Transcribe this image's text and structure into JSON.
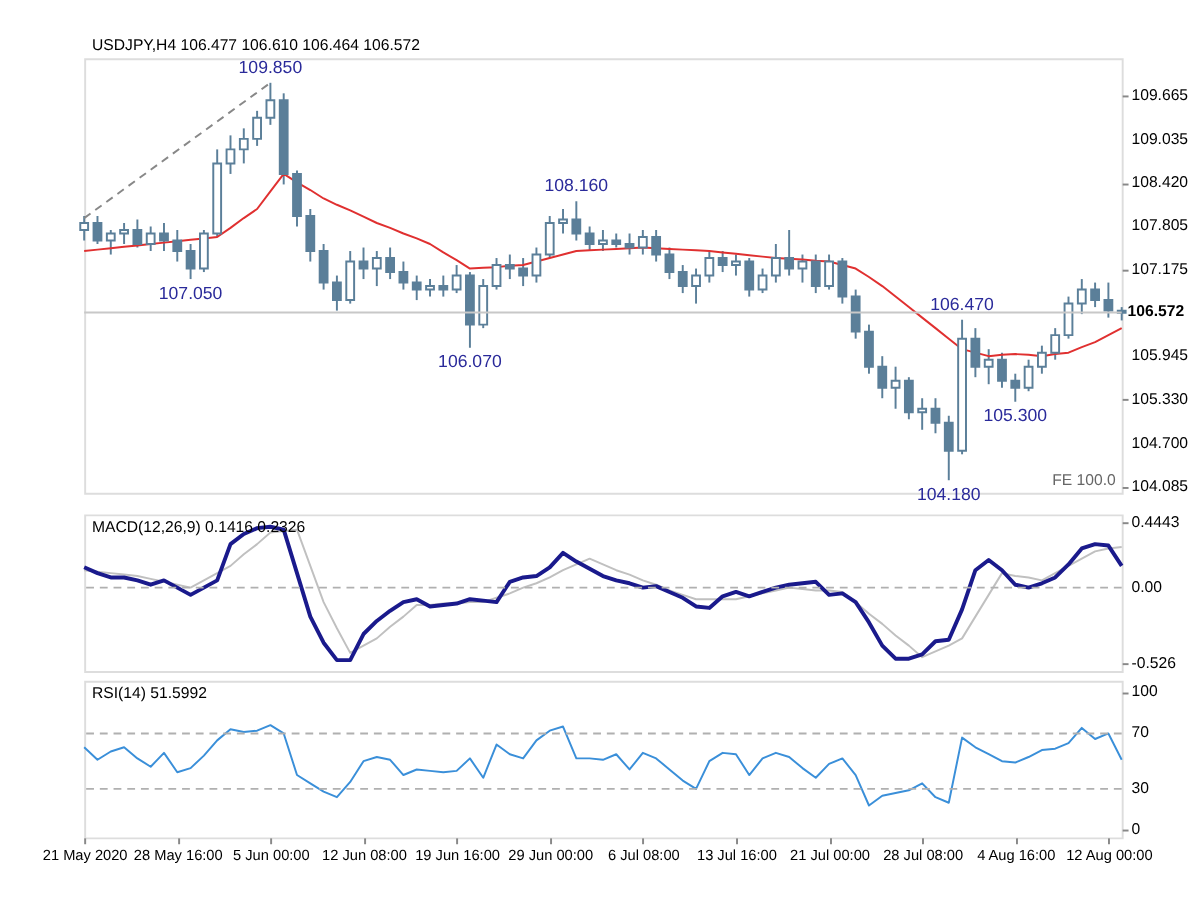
{
  "chart_data": [
    {
      "type": "candlestick",
      "title": "USDJPY,H4  106.477 106.610 106.464 106.572",
      "tick_labels": "y",
      "categories": [
        "21 May 2020",
        null,
        null,
        null,
        null,
        null,
        null,
        "28 May 16:00",
        null,
        null,
        null,
        null,
        null,
        null,
        "5 Jun 00:00",
        null,
        null,
        null,
        null,
        null,
        null,
        "12 Jun 08:00",
        null,
        null,
        null,
        null,
        null,
        null,
        "19 Jun 16:00",
        null,
        null,
        null,
        null,
        null,
        null,
        "29 Jun 00:00",
        null,
        null,
        null,
        null,
        null,
        null,
        "6 Jul 08:00",
        null,
        null,
        null,
        null,
        null,
        null,
        "13 Jul 16:00",
        null,
        null,
        null,
        null,
        null,
        null,
        "21 Jul 00:00",
        null,
        null,
        null,
        null,
        null,
        null,
        "28 Jul 08:00",
        null,
        null,
        null,
        null,
        null,
        null,
        "4 Aug 16:00",
        null,
        null,
        null,
        null,
        null,
        null,
        "12 Aug 00:00",
        null
      ],
      "ohlc": [
        [
          107.75,
          107.95,
          107.6,
          107.85
        ],
        [
          107.85,
          107.95,
          107.55,
          107.6
        ],
        [
          107.6,
          107.75,
          107.4,
          107.7
        ],
        [
          107.7,
          107.85,
          107.55,
          107.75
        ],
        [
          107.75,
          107.9,
          107.5,
          107.55
        ],
        [
          107.55,
          107.8,
          107.45,
          107.7
        ],
        [
          107.7,
          107.85,
          107.45,
          107.6
        ],
        [
          107.6,
          107.75,
          107.3,
          107.45
        ],
        [
          107.45,
          107.55,
          107.05,
          107.2
        ],
        [
          107.2,
          107.75,
          107.15,
          107.7
        ],
        [
          107.7,
          108.9,
          107.65,
          108.7
        ],
        [
          108.7,
          109.1,
          108.55,
          108.9
        ],
        [
          108.9,
          109.2,
          108.7,
          109.05
        ],
        [
          109.05,
          109.45,
          108.95,
          109.35
        ],
        [
          109.35,
          109.85,
          109.25,
          109.6
        ],
        [
          109.6,
          109.7,
          108.4,
          108.55
        ],
        [
          108.55,
          108.6,
          107.8,
          107.95
        ],
        [
          107.95,
          108.05,
          107.3,
          107.45
        ],
        [
          107.45,
          107.55,
          106.9,
          107.0
        ],
        [
          107.0,
          107.1,
          106.6,
          106.75
        ],
        [
          106.75,
          107.45,
          106.7,
          107.3
        ],
        [
          107.3,
          107.5,
          107.05,
          107.2
        ],
        [
          107.2,
          107.45,
          106.95,
          107.35
        ],
        [
          107.35,
          107.5,
          107.05,
          107.15
        ],
        [
          107.15,
          107.3,
          106.9,
          107.0
        ],
        [
          107.0,
          107.1,
          106.75,
          106.9
        ],
        [
          106.9,
          107.05,
          106.8,
          106.95
        ],
        [
          106.95,
          107.1,
          106.8,
          106.9
        ],
        [
          106.9,
          107.25,
          106.85,
          107.1
        ],
        [
          107.1,
          107.15,
          106.07,
          106.4
        ],
        [
          106.4,
          107.05,
          106.35,
          106.95
        ],
        [
          106.95,
          107.35,
          106.9,
          107.25
        ],
        [
          107.25,
          107.4,
          107.05,
          107.2
        ],
        [
          107.2,
          107.35,
          106.95,
          107.1
        ],
        [
          107.1,
          107.5,
          107.0,
          107.4
        ],
        [
          107.4,
          107.95,
          107.35,
          107.85
        ],
        [
          107.85,
          108.05,
          107.7,
          107.9
        ],
        [
          107.9,
          108.16,
          107.6,
          107.7
        ],
        [
          107.7,
          107.8,
          107.45,
          107.55
        ],
        [
          107.55,
          107.75,
          107.45,
          107.6
        ],
        [
          107.6,
          107.7,
          107.5,
          107.55
        ],
        [
          107.55,
          107.7,
          107.4,
          107.5
        ],
        [
          107.5,
          107.75,
          107.4,
          107.65
        ],
        [
          107.65,
          107.75,
          107.3,
          107.4
        ],
        [
          107.4,
          107.5,
          107.05,
          107.15
        ],
        [
          107.15,
          107.25,
          106.85,
          106.95
        ],
        [
          106.95,
          107.2,
          106.7,
          107.1
        ],
        [
          107.1,
          107.45,
          107.0,
          107.35
        ],
        [
          107.35,
          107.45,
          107.15,
          107.25
        ],
        [
          107.25,
          107.4,
          107.1,
          107.3
        ],
        [
          107.3,
          107.35,
          106.8,
          106.9
        ],
        [
          106.9,
          107.2,
          106.85,
          107.1
        ],
        [
          107.1,
          107.55,
          107.0,
          107.35
        ],
        [
          107.35,
          107.75,
          107.1,
          107.2
        ],
        [
          107.2,
          107.4,
          107.0,
          107.3
        ],
        [
          107.3,
          107.4,
          106.85,
          106.95
        ],
        [
          106.95,
          107.4,
          106.9,
          107.3
        ],
        [
          107.3,
          107.35,
          106.7,
          106.8
        ],
        [
          106.8,
          106.9,
          106.2,
          106.3
        ],
        [
          106.3,
          106.4,
          105.7,
          105.8
        ],
        [
          105.8,
          105.95,
          105.35,
          105.5
        ],
        [
          105.5,
          105.8,
          105.2,
          105.6
        ],
        [
          105.6,
          105.65,
          105.05,
          105.15
        ],
        [
          105.15,
          105.35,
          104.9,
          105.2
        ],
        [
          105.2,
          105.35,
          104.85,
          105.0
        ],
        [
          105.0,
          105.1,
          104.18,
          104.6
        ],
        [
          104.6,
          106.47,
          104.55,
          106.2
        ],
        [
          106.2,
          106.35,
          105.65,
          105.8
        ],
        [
          105.8,
          106.05,
          105.55,
          105.9
        ],
        [
          105.9,
          106.0,
          105.5,
          105.6
        ],
        [
          105.6,
          105.7,
          105.3,
          105.5
        ],
        [
          105.5,
          105.9,
          105.45,
          105.8
        ],
        [
          105.8,
          106.1,
          105.7,
          106.0
        ],
        [
          106.0,
          106.35,
          105.9,
          106.25
        ],
        [
          106.25,
          106.8,
          106.2,
          106.7
        ],
        [
          106.7,
          107.05,
          106.55,
          106.9
        ],
        [
          106.9,
          107.0,
          106.65,
          106.75
        ],
        [
          106.75,
          107.0,
          106.5,
          106.6
        ],
        [
          106.6,
          106.65,
          106.46,
          106.57
        ]
      ],
      "color": "#5b7f99",
      "series": [
        {
          "type": "line",
          "color": "#e03030",
          "values": [
            107.45,
            107.47,
            107.49,
            107.51,
            107.53,
            107.55,
            107.57,
            107.59,
            107.61,
            107.63,
            107.65,
            107.78,
            107.92,
            108.05,
            108.3,
            108.55,
            108.43,
            108.32,
            108.2,
            108.11,
            108.03,
            107.94,
            107.85,
            107.78,
            107.7,
            107.63,
            107.55,
            107.43,
            107.32,
            107.2,
            107.21,
            107.22,
            107.24,
            107.25,
            107.3,
            107.35,
            107.4,
            107.45,
            107.46,
            107.47,
            107.48,
            107.49,
            107.5,
            107.49,
            107.48,
            107.47,
            107.46,
            107.45,
            107.43,
            107.41,
            107.39,
            107.37,
            107.35,
            107.34,
            107.33,
            107.31,
            107.3,
            107.25,
            107.2,
            107.08,
            106.95,
            106.8,
            106.65,
            106.5,
            106.35,
            106.2,
            106.05,
            106.0,
            105.95,
            105.97,
            105.98,
            105.97,
            105.95,
            105.98,
            106.0,
            106.08,
            106.15,
            106.25,
            106.35
          ]
        },
        {
          "type": "line",
          "line_style": "dashed",
          "color": "#888888",
          "x": [
            "21 May 2020",
            "5 Jun 00:00"
          ],
          "values": [
            107.92,
            109.85
          ]
        }
      ],
      "ylim": [
        104.0,
        110.2
      ],
      "yticks": [
        109.665,
        109.035,
        {
          "value": 108.42,
          "label": "108.420"
        },
        107.805,
        107.175,
        105.945,
        {
          "value": 105.33,
          "label": "105.330"
        },
        {
          "value": 104.7,
          "label": "104.700"
        },
        104.085
      ],
      "ref_lines": [
        {
          "axis": "y",
          "value": 106.572,
          "label": "106.572",
          "color": "#c8c8c8"
        }
      ],
      "annotations": [
        {
          "text": "109.850",
          "y": 109.85
        },
        {
          "text": "108.160",
          "y": 108.16
        },
        {
          "text": "106.070",
          "y": 106.07
        },
        {
          "text": "106.470",
          "y": 106.47
        },
        {
          "text": "104.180",
          "y": 104.18
        },
        {
          "text": "105.300",
          "y": 105.3
        },
        {
          "text": "107.050",
          "y": 107.05
        },
        "FE 100.0"
      ]
    },
    {
      "type": "line",
      "title": "MACD(12,26,9) 0.1416 0.2326",
      "tick_labels": "y",
      "categories": [
        "21 May 2020",
        null,
        null,
        null,
        null,
        null,
        null,
        "28 May 16:00",
        null,
        null,
        null,
        null,
        null,
        null,
        "5 Jun 00:00",
        null,
        null,
        null,
        null,
        null,
        null,
        "12 Jun 08:00",
        null,
        null,
        null,
        null,
        null,
        null,
        "19 Jun 16:00",
        null,
        null,
        null,
        null,
        null,
        null,
        "29 Jun 00:00",
        null,
        null,
        null,
        null,
        null,
        null,
        "6 Jul 08:00",
        null,
        null,
        null,
        null,
        null,
        null,
        "13 Jul 16:00",
        null,
        null,
        null,
        null,
        null,
        null,
        "21 Jul 00:00",
        null,
        null,
        null,
        null,
        null,
        null,
        "28 Jul 08:00",
        null,
        null,
        null,
        null,
        null,
        null,
        "4 Aug 16:00",
        null,
        null,
        null,
        null,
        null,
        null,
        "12 Aug 00:00",
        null
      ],
      "series": [
        {
          "color": "#c0c0c0",
          "values": [
            0.12,
            0.11,
            0.1,
            0.09,
            0.08,
            0.06,
            0.04,
            0.02,
            0,
            0.05,
            0.1,
            0.15,
            0.23,
            0.3,
            0.38,
            0.39,
            0.4,
            0.15,
            -0.1,
            -0.28,
            -0.45,
            -0.4,
            -0.35,
            -0.27,
            -0.2,
            -0.12,
            -0.12,
            -0.11,
            -0.11,
            -0.1,
            -0.1,
            -0.07,
            -0.04,
            0,
            0.03,
            0.07,
            0.12,
            0.16,
            0.2,
            0.16,
            0.12,
            0.09,
            0.05,
            0.02,
            -0.02,
            -0.05,
            -0.08,
            -0.08,
            -0.08,
            -0.08,
            -0.06,
            -0.04,
            -0.02,
            0,
            -0.01,
            -0.02,
            -0.02,
            -0.03,
            -0.1,
            -0.18,
            -0.25,
            -0.33,
            -0.4,
            -0.48,
            -0.44,
            -0.4,
            -0.35,
            -0.2,
            -0.05,
            0.1,
            0.08,
            0.07,
            0.05,
            0.1,
            0.15,
            0.2,
            0.25,
            0.27,
            0.28
          ]
        },
        {
          "color": "#1a1a8c",
          "values": [
            0.14,
            0.1,
            0.07,
            0.07,
            0.05,
            0.02,
            0.05,
            0,
            -0.05,
            0,
            0.05,
            0.3,
            0.37,
            0.41,
            0.42,
            0.4,
            0.1,
            -0.2,
            -0.38,
            -0.5,
            -0.5,
            -0.32,
            -0.23,
            -0.16,
            -0.1,
            -0.08,
            -0.13,
            -0.12,
            -0.11,
            -0.08,
            -0.09,
            -0.1,
            0.04,
            0.07,
            0.08,
            0.14,
            0.24,
            0.18,
            0.13,
            0.08,
            0.05,
            0.03,
            0,
            0.01,
            -0.03,
            -0.07,
            -0.13,
            -0.14,
            -0.06,
            -0.03,
            -0.06,
            -0.03,
            0,
            0.02,
            0.03,
            0.04,
            -0.05,
            -0.04,
            -0.1,
            -0.24,
            -0.4,
            -0.49,
            -0.49,
            -0.46,
            -0.37,
            -0.36,
            -0.15,
            0.12,
            0.19,
            0.12,
            0.02,
            0,
            0.03,
            0.07,
            0.16,
            0.27,
            0.3,
            0.29,
            0.15
          ]
        }
      ],
      "ylim": [
        -0.575,
        0.505
      ],
      "yticks": [
        0.4443,
        {
          "value": 0,
          "label": "0.00"
        },
        -0.526
      ],
      "ref_lines": [
        {
          "axis": "y",
          "value": 0,
          "color": "#b0b0b0",
          "line_style": "dashed"
        }
      ]
    },
    {
      "type": "line",
      "title": "RSI(14) 51.5992",
      "categories": [
        "21 May 2020",
        null,
        null,
        null,
        null,
        null,
        null,
        "28 May 16:00",
        null,
        null,
        null,
        null,
        null,
        null,
        "5 Jun 00:00",
        null,
        null,
        null,
        null,
        null,
        null,
        "12 Jun 08:00",
        null,
        null,
        null,
        null,
        null,
        null,
        "19 Jun 16:00",
        null,
        null,
        null,
        null,
        null,
        null,
        "29 Jun 00:00",
        null,
        null,
        null,
        null,
        null,
        null,
        "6 Jul 08:00",
        null,
        null,
        null,
        null,
        null,
        null,
        "13 Jul 16:00",
        null,
        null,
        null,
        null,
        null,
        null,
        "21 Jul 00:00",
        null,
        null,
        null,
        null,
        null,
        null,
        "28 Jul 08:00",
        null,
        null,
        null,
        null,
        null,
        null,
        "4 Aug 16:00",
        null,
        null,
        null,
        null,
        null,
        null,
        "12 Aug 00:00",
        null
      ],
      "series": [
        {
          "color": "#3a8fd9",
          "values": [
            60,
            51,
            57,
            60,
            52,
            46,
            56,
            42,
            45,
            54,
            65,
            73,
            71,
            72,
            76,
            70,
            40,
            34,
            28,
            24,
            35,
            50,
            53,
            51,
            40,
            44,
            43,
            42,
            43,
            52,
            38,
            62,
            55,
            52,
            65,
            72,
            75,
            52,
            52,
            51,
            55,
            44,
            56,
            52,
            44,
            36,
            30,
            50,
            56,
            55,
            40,
            52,
            56,
            53,
            45,
            38,
            48,
            52,
            40,
            18,
            25,
            27,
            29,
            34,
            24,
            20,
            67,
            60,
            55,
            50,
            49,
            53,
            58,
            59,
            63,
            74,
            66,
            70,
            51
          ]
        }
      ],
      "ylim": [
        -5,
        108
      ],
      "yticks": [
        100,
        70,
        30,
        0
      ],
      "ref_lines": [
        {
          "axis": "y",
          "value": 70,
          "color": "#b0b0b0",
          "line_style": "dashed"
        },
        {
          "axis": "y",
          "value": 30,
          "color": "#b0b0b0",
          "line_style": "dashed"
        }
      ]
    }
  ]
}
